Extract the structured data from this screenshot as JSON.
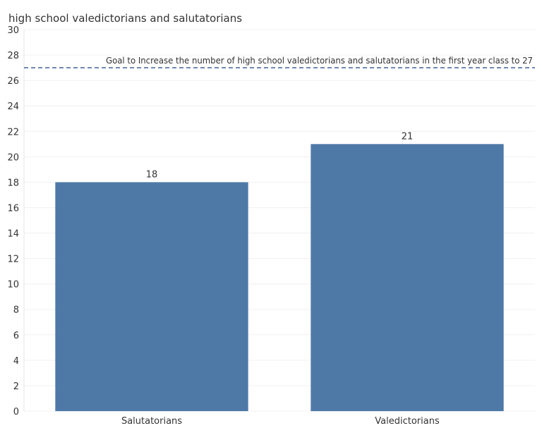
{
  "chart_data": {
    "type": "bar",
    "title": "high school valedictorians and salutatorians",
    "xlabel": "",
    "ylabel": "",
    "categories": [
      "Salutatorians",
      "Valedictorians"
    ],
    "values": [
      18,
      21
    ],
    "data_labels": [
      "18",
      "21"
    ],
    "ylim": [
      0,
      30
    ],
    "yticks": [
      0,
      2,
      4,
      6,
      8,
      10,
      12,
      14,
      16,
      18,
      20,
      22,
      24,
      26,
      28,
      30
    ],
    "grid": true,
    "bar_color": "#4e79a7",
    "reference_line": {
      "value": 27,
      "label": "Goal to Increase the number of high school valedictorians and salutatorians in the first year class to 27",
      "color": "#4e6fa0",
      "style": "dashed"
    }
  }
}
